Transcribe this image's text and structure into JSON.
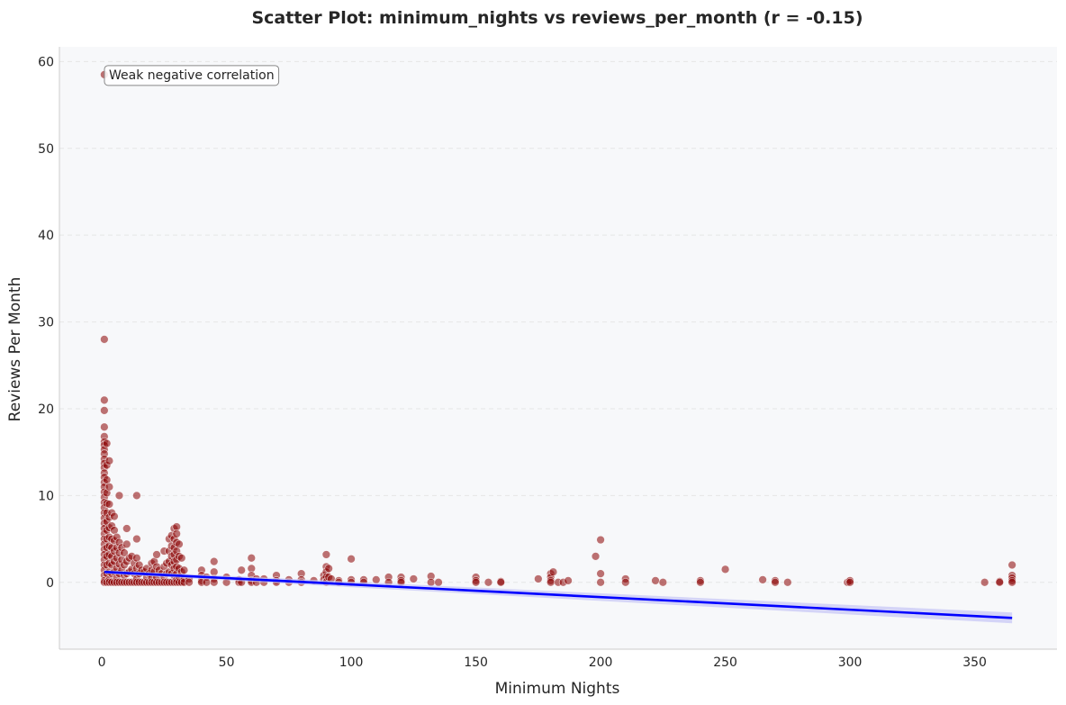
{
  "chart_data": {
    "type": "scatter",
    "title": "Scatter Plot: minimum_nights vs reviews_per_month (r = -0.15)",
    "xlabel": "Minimum Nights",
    "ylabel": "Reviews Per Month",
    "xlim": [
      -17,
      383
    ],
    "ylim": [
      -7.7,
      61.7
    ],
    "xticks": [
      0,
      50,
      100,
      150,
      200,
      250,
      300,
      350
    ],
    "yticks": [
      0,
      10,
      20,
      30,
      40,
      50,
      60
    ],
    "grid": "horizontal dashed",
    "annotation": "Weak negative correlation",
    "colors": {
      "points": "#8b0000",
      "trend": "#0000ff",
      "band": "#c8c8f5",
      "background": "#f7f8fa",
      "grid": "#e6e6e6"
    },
    "trend_line": {
      "x": [
        1,
        365
      ],
      "y": [
        1.2,
        -4.1
      ]
    },
    "points": [
      [
        1,
        58.5
      ],
      [
        1,
        28
      ],
      [
        1,
        21
      ],
      [
        1,
        19.8
      ],
      [
        1,
        17.9
      ],
      [
        1,
        16.8
      ],
      [
        1,
        16.2
      ],
      [
        1,
        15.8
      ],
      [
        1,
        15.3
      ],
      [
        1,
        14.8
      ],
      [
        1,
        14.2
      ],
      [
        1,
        13.7
      ],
      [
        1,
        13.2
      ],
      [
        1,
        12.6
      ],
      [
        1,
        12.1
      ],
      [
        1,
        11.5
      ],
      [
        1,
        11
      ],
      [
        1,
        10.4
      ],
      [
        1,
        9.8
      ],
      [
        1,
        9.2
      ],
      [
        1,
        8.6
      ],
      [
        1,
        8
      ],
      [
        1,
        7.4
      ],
      [
        1,
        6.8
      ],
      [
        1,
        6.2
      ],
      [
        1,
        5.6
      ],
      [
        1,
        5
      ],
      [
        1,
        4.4
      ],
      [
        1,
        3.8
      ],
      [
        1,
        3.2
      ],
      [
        1,
        2.6
      ],
      [
        1,
        2
      ],
      [
        1,
        1.4
      ],
      [
        1,
        0.8
      ],
      [
        1,
        0.2
      ],
      [
        1,
        0
      ],
      [
        2,
        16
      ],
      [
        2,
        13.5
      ],
      [
        2,
        11.8
      ],
      [
        2,
        10.3
      ],
      [
        2,
        9.1
      ],
      [
        2,
        8
      ],
      [
        2,
        7
      ],
      [
        2,
        6
      ],
      [
        2,
        5
      ],
      [
        2,
        4
      ],
      [
        2,
        3
      ],
      [
        2,
        2
      ],
      [
        2,
        1
      ],
      [
        2,
        0
      ],
      [
        3,
        14
      ],
      [
        3,
        11
      ],
      [
        3,
        9
      ],
      [
        3,
        7.5
      ],
      [
        3,
        6.3
      ],
      [
        3,
        5.2
      ],
      [
        3,
        4.2
      ],
      [
        3,
        3.2
      ],
      [
        3,
        2.2
      ],
      [
        3,
        1.2
      ],
      [
        3,
        0.3
      ],
      [
        3,
        0
      ],
      [
        4,
        8
      ],
      [
        4,
        6.5
      ],
      [
        4,
        5
      ],
      [
        4,
        4
      ],
      [
        4,
        3
      ],
      [
        4,
        2
      ],
      [
        4,
        1
      ],
      [
        4,
        0
      ],
      [
        5,
        7.6
      ],
      [
        5,
        6
      ],
      [
        5,
        4.8
      ],
      [
        5,
        3.6
      ],
      [
        5,
        2.4
      ],
      [
        5,
        1.2
      ],
      [
        5,
        0
      ],
      [
        6,
        5.2
      ],
      [
        6,
        4
      ],
      [
        6,
        2.8
      ],
      [
        6,
        1.6
      ],
      [
        6,
        0.5
      ],
      [
        6,
        0
      ],
      [
        7,
        10
      ],
      [
        7,
        4.6
      ],
      [
        7,
        3.4
      ],
      [
        7,
        2.1
      ],
      [
        7,
        1
      ],
      [
        7,
        0
      ],
      [
        8,
        4
      ],
      [
        8,
        2.6
      ],
      [
        8,
        1.4
      ],
      [
        8,
        0
      ],
      [
        9,
        3.4
      ],
      [
        9,
        2
      ],
      [
        9,
        0.8
      ],
      [
        9,
        0
      ],
      [
        10,
        6.2
      ],
      [
        10,
        4.4
      ],
      [
        10,
        2.4
      ],
      [
        10,
        1
      ],
      [
        10,
        0
      ],
      [
        11,
        2.8
      ],
      [
        11,
        1.2
      ],
      [
        11,
        0
      ],
      [
        12,
        3
      ],
      [
        12,
        1.5
      ],
      [
        12,
        0
      ],
      [
        13,
        2.2
      ],
      [
        13,
        1
      ],
      [
        13,
        0
      ],
      [
        14,
        10
      ],
      [
        14,
        5
      ],
      [
        14,
        2.8
      ],
      [
        14,
        1.6
      ],
      [
        14,
        0.4
      ],
      [
        14,
        0
      ],
      [
        15,
        2
      ],
      [
        15,
        1
      ],
      [
        15,
        0
      ],
      [
        16,
        1.4
      ],
      [
        16,
        0
      ],
      [
        17,
        1.2
      ],
      [
        17,
        0
      ],
      [
        18,
        1.6
      ],
      [
        18,
        0.6
      ],
      [
        18,
        0
      ],
      [
        19,
        1
      ],
      [
        19,
        0
      ],
      [
        20,
        2.2
      ],
      [
        20,
        1.4
      ],
      [
        20,
        0.5
      ],
      [
        20,
        0
      ],
      [
        21,
        2.4
      ],
      [
        21,
        1.2
      ],
      [
        21,
        0
      ],
      [
        22,
        3.2
      ],
      [
        22,
        1.8
      ],
      [
        22,
        0.6
      ],
      [
        22,
        0
      ],
      [
        23,
        1.4
      ],
      [
        23,
        0
      ],
      [
        24,
        1
      ],
      [
        24,
        0
      ],
      [
        25,
        3.6
      ],
      [
        25,
        1.8
      ],
      [
        25,
        0.6
      ],
      [
        25,
        0
      ],
      [
        26,
        2.2
      ],
      [
        26,
        1
      ],
      [
        26,
        0
      ],
      [
        27,
        5
      ],
      [
        27,
        3.6
      ],
      [
        27,
        2.4
      ],
      [
        27,
        1.2
      ],
      [
        27,
        0
      ],
      [
        28,
        5.4
      ],
      [
        28,
        4.2
      ],
      [
        28,
        3
      ],
      [
        28,
        2
      ],
      [
        28,
        1
      ],
      [
        28,
        0
      ],
      [
        29,
        6.2
      ],
      [
        29,
        5
      ],
      [
        29,
        4
      ],
      [
        29,
        3.2
      ],
      [
        29,
        2.4
      ],
      [
        29,
        1.6
      ],
      [
        29,
        0.8
      ],
      [
        29,
        0
      ],
      [
        30,
        6.4
      ],
      [
        30,
        5.6
      ],
      [
        30,
        4.6
      ],
      [
        30,
        3.6
      ],
      [
        30,
        2.6
      ],
      [
        30,
        1.8
      ],
      [
        30,
        1
      ],
      [
        30,
        0.3
      ],
      [
        30,
        0
      ],
      [
        31,
        4.4
      ],
      [
        31,
        3
      ],
      [
        31,
        1.6
      ],
      [
        31,
        0.6
      ],
      [
        31,
        0
      ],
      [
        32,
        2.8
      ],
      [
        32,
        1.2
      ],
      [
        32,
        0
      ],
      [
        33,
        1.4
      ],
      [
        33,
        0.4
      ],
      [
        33,
        0
      ],
      [
        35,
        0.4
      ],
      [
        35,
        0
      ],
      [
        40,
        1.4
      ],
      [
        40,
        0.8
      ],
      [
        40,
        0.2
      ],
      [
        40,
        0
      ],
      [
        42,
        0.6
      ],
      [
        42,
        0
      ],
      [
        45,
        2.4
      ],
      [
        45,
        1.2
      ],
      [
        45,
        0.4
      ],
      [
        45,
        0
      ],
      [
        50,
        0.6
      ],
      [
        50,
        0
      ],
      [
        55,
        0.3
      ],
      [
        55,
        0
      ],
      [
        56,
        1.4
      ],
      [
        56,
        0
      ],
      [
        60,
        2.8
      ],
      [
        60,
        1.6
      ],
      [
        60,
        0.8
      ],
      [
        60,
        0.2
      ],
      [
        60,
        0
      ],
      [
        62,
        0.4
      ],
      [
        62,
        0
      ],
      [
        65,
        0.4
      ],
      [
        65,
        0
      ],
      [
        70,
        0.8
      ],
      [
        70,
        0.2
      ],
      [
        70,
        0
      ],
      [
        75,
        0.3
      ],
      [
        75,
        0
      ],
      [
        80,
        1
      ],
      [
        80,
        0.3
      ],
      [
        80,
        0
      ],
      [
        85,
        0.2
      ],
      [
        89,
        0.8
      ],
      [
        89,
        0.3
      ],
      [
        90,
        3.2
      ],
      [
        90,
        1.8
      ],
      [
        90,
        1.2
      ],
      [
        90,
        0.6
      ],
      [
        90,
        0.1
      ],
      [
        90,
        0
      ],
      [
        91,
        1.6
      ],
      [
        91,
        0.6
      ],
      [
        92,
        0.4
      ],
      [
        95,
        0.2
      ],
      [
        95,
        0
      ],
      [
        100,
        2.7
      ],
      [
        100,
        0.3
      ],
      [
        100,
        0
      ],
      [
        105,
        0.3
      ],
      [
        105,
        0
      ],
      [
        110,
        0.3
      ],
      [
        115,
        0.6
      ],
      [
        115,
        0
      ],
      [
        120,
        0.6
      ],
      [
        120,
        0.2
      ],
      [
        120,
        0
      ],
      [
        125,
        0.4
      ],
      [
        132,
        0.7
      ],
      [
        132,
        0
      ],
      [
        135,
        0
      ],
      [
        150,
        0.6
      ],
      [
        150,
        0.2
      ],
      [
        150,
        0
      ],
      [
        155,
        0
      ],
      [
        160,
        0.1
      ],
      [
        160,
        0
      ],
      [
        175,
        0.4
      ],
      [
        180,
        1
      ],
      [
        180,
        0.6
      ],
      [
        180,
        0.2
      ],
      [
        180,
        0
      ],
      [
        181,
        1.2
      ],
      [
        183,
        0
      ],
      [
        185,
        0
      ],
      [
        187,
        0.2
      ],
      [
        198,
        3
      ],
      [
        200,
        4.9
      ],
      [
        200,
        1
      ],
      [
        200,
        0
      ],
      [
        210,
        0.4
      ],
      [
        210,
        0
      ],
      [
        222,
        0.2
      ],
      [
        225,
        0
      ],
      [
        240,
        0.2
      ],
      [
        240,
        0
      ],
      [
        250,
        1.5
      ],
      [
        265,
        0.3
      ],
      [
        270,
        0.2
      ],
      [
        270,
        0
      ],
      [
        275,
        0
      ],
      [
        299,
        0
      ],
      [
        300,
        0.2
      ],
      [
        300,
        0
      ],
      [
        354,
        0
      ],
      [
        360,
        0.1
      ],
      [
        360,
        0
      ],
      [
        365,
        2
      ],
      [
        365,
        0.8
      ],
      [
        365,
        0.5
      ],
      [
        365,
        0.2
      ],
      [
        365,
        0
      ]
    ]
  }
}
